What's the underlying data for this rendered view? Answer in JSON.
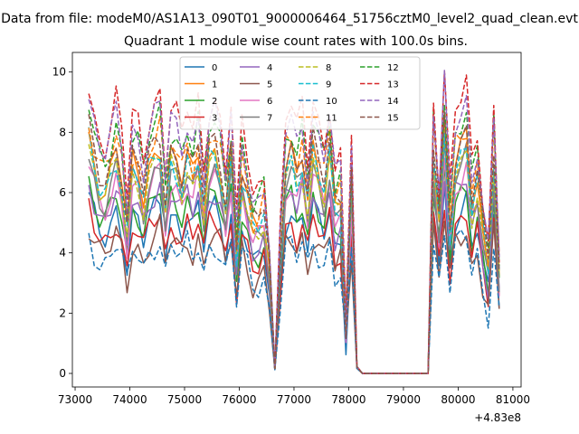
{
  "chart_data": {
    "type": "line",
    "suptitle": "Data from file: modeM0/AS1A13_090T01_9000006464_51756cztM0_level2_quad_clean.evt",
    "title": "Quadrant 1 module wise count rates with 100.0s bins.",
    "xlabel": "",
    "ylabel": "",
    "x_offset_label": "+4.83e8",
    "xlim": [
      72950,
      81150
    ],
    "ylim": [
      -0.45,
      10.65
    ],
    "x_ticks": [
      73000,
      74000,
      75000,
      76000,
      77000,
      78000,
      79000,
      80000,
      81000
    ],
    "x_tick_labels": [
      "73000",
      "74000",
      "75000",
      "76000",
      "77000",
      "78000",
      "79000",
      "80000",
      "81000"
    ],
    "y_ticks": [
      0,
      2,
      4,
      6,
      8,
      10
    ],
    "y_tick_labels": [
      "0",
      "2",
      "4",
      "6",
      "8",
      "10"
    ],
    "legend_position": "upper center",
    "x": [
      73250,
      73350,
      73450,
      73550,
      73650,
      73750,
      73850,
      73950,
      74050,
      74150,
      74250,
      74350,
      74450,
      74550,
      74650,
      74750,
      74850,
      74950,
      75050,
      75150,
      75250,
      75350,
      75450,
      75550,
      75650,
      75750,
      75850,
      75950,
      76050,
      76150,
      76250,
      76350,
      76450,
      76550,
      76650,
      76750,
      76850,
      76950,
      77050,
      77150,
      77250,
      77350,
      77450,
      77550,
      77650,
      77750,
      77850,
      77950,
      78050,
      78150,
      78250,
      78350,
      79350,
      79450,
      79550,
      79650,
      79750,
      79850,
      79950,
      80050,
      80150,
      80250,
      80350,
      80450,
      80550,
      80650,
      80750
    ],
    "base_profile": [
      7.0,
      6.2,
      5.6,
      5.5,
      6.0,
      6.6,
      5.8,
      4.3,
      6.2,
      6.0,
      5.2,
      6.1,
      6.5,
      6.8,
      5.0,
      6.4,
      6.2,
      5.7,
      6.4,
      5.8,
      6.5,
      5.0,
      6.4,
      6.6,
      6.1,
      5.0,
      6.5,
      3.6,
      6.0,
      5.2,
      4.3,
      4.4,
      4.8,
      3.2,
      0.15,
      3.6,
      6.2,
      6.5,
      5.8,
      6.4,
      5.1,
      6.6,
      6.0,
      5.5,
      6.6,
      4.9,
      5.2,
      1.4,
      5.8,
      0.2,
      0.0,
      0.0,
      0.0,
      0.0,
      6.6,
      4.6,
      7.3,
      4.4,
      6.3,
      6.6,
      6.9,
      5.0,
      5.8,
      4.2,
      3.1,
      6.5,
      3.0
    ],
    "series": [
      {
        "name": "0",
        "color": "#1f77b4",
        "dash": false,
        "scale": 0.83
      },
      {
        "name": "1",
        "color": "#ff7f0e",
        "dash": false,
        "scale": 1.12
      },
      {
        "name": "2",
        "color": "#2ca02c",
        "dash": false,
        "scale": 0.9
      },
      {
        "name": "3",
        "color": "#d62728",
        "dash": false,
        "scale": 0.78
      },
      {
        "name": "4",
        "color": "#9467bd",
        "dash": false,
        "scale": 0.93
      },
      {
        "name": "5",
        "color": "#8c564b",
        "dash": false,
        "scale": 0.7
      },
      {
        "name": "6",
        "color": "#e377c2",
        "dash": false,
        "scale": 0.99
      },
      {
        "name": "7",
        "color": "#7f7f7f",
        "dash": false,
        "scale": 1.03
      },
      {
        "name": "8",
        "color": "#bcbd22",
        "dash": true,
        "scale": 1.06
      },
      {
        "name": "9",
        "color": "#17becf",
        "dash": true,
        "scale": 1.09
      },
      {
        "name": "10",
        "color": "#1f77b4",
        "dash": true,
        "scale": 0.66
      },
      {
        "name": "11",
        "color": "#ff7f0e",
        "dash": true,
        "scale": 1.2
      },
      {
        "name": "12",
        "color": "#2ca02c",
        "dash": true,
        "scale": 1.27
      },
      {
        "name": "13",
        "color": "#d62728",
        "dash": true,
        "scale": 1.38
      },
      {
        "name": "14",
        "color": "#9467bd",
        "dash": true,
        "scale": 1.31
      },
      {
        "name": "15",
        "color": "#8c564b",
        "dash": true,
        "scale": 1.16
      }
    ]
  }
}
